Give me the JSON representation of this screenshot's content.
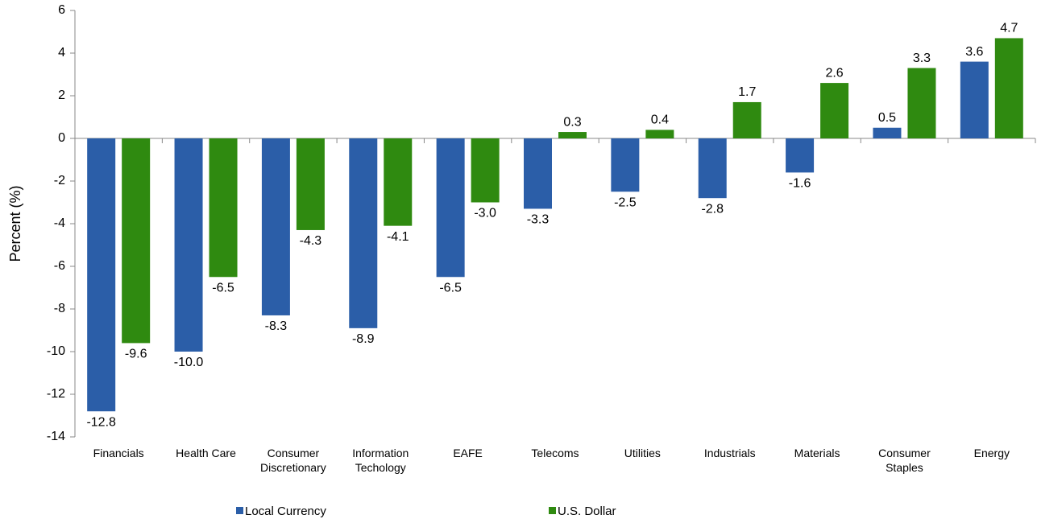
{
  "chart_data": {
    "type": "bar",
    "y_label": "Percent (%)",
    "categories": [
      "Financials",
      "Health Care",
      "Consumer Discretionary",
      "Information Techology",
      "EAFE",
      "Telecoms",
      "Utilities",
      "Industrials",
      "Materials",
      "Consumer Staples",
      "Energy"
    ],
    "series": [
      {
        "name": "Local Currency",
        "color": "#2b5ea8",
        "values": [
          -12.8,
          -10.0,
          -8.3,
          -8.9,
          -6.5,
          -3.3,
          -2.5,
          -2.8,
          -1.6,
          0.5,
          3.6
        ],
        "value_labels": [
          "-12.8",
          "-10.0",
          "-8.3",
          "-8.9",
          "-6.5",
          "-3.3",
          "-2.5",
          "-2.8",
          "-1.6",
          "0.5",
          "3.6"
        ]
      },
      {
        "name": "U.S. Dollar",
        "color": "#2f8a10",
        "values": [
          -9.6,
          -6.5,
          -4.3,
          -4.1,
          -3.0,
          0.3,
          0.4,
          1.7,
          2.6,
          3.3,
          4.7
        ],
        "value_labels": [
          "-9.6",
          "-6.5",
          "-4.3",
          "-4.1",
          "-3.0",
          "0.3",
          "0.4",
          "1.7",
          "2.6",
          "3.3",
          "4.7"
        ]
      }
    ],
    "ylim": [
      -14,
      6
    ],
    "yticks": [
      -14,
      -12,
      -10,
      -8,
      -6,
      -4,
      -2,
      0,
      2,
      4,
      6
    ],
    "grid": false,
    "legend": "bottom"
  }
}
